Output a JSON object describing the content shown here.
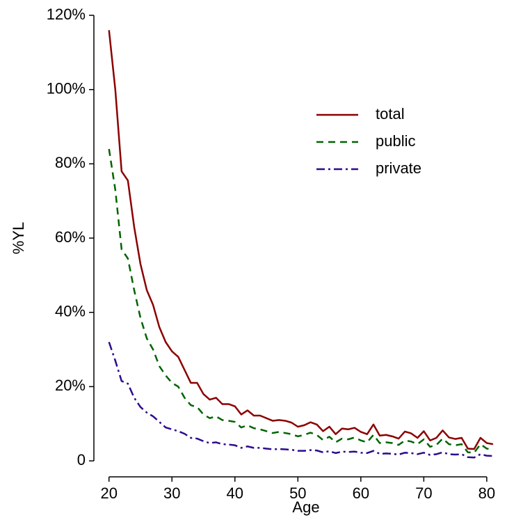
{
  "chart_data": {
    "type": "line",
    "xlabel": "Age",
    "ylabel": "%YL",
    "x": [
      20,
      21,
      22,
      23,
      24,
      25,
      26,
      27,
      28,
      29,
      30,
      31,
      32,
      33,
      34,
      35,
      36,
      37,
      38,
      39,
      40,
      41,
      42,
      43,
      44,
      45,
      46,
      47,
      48,
      49,
      50,
      51,
      52,
      53,
      54,
      55,
      56,
      57,
      58,
      59,
      60,
      61,
      62,
      63,
      64,
      65,
      66,
      67,
      68,
      69,
      70,
      71,
      72,
      73,
      74,
      75,
      76,
      77,
      78,
      79,
      80,
      81
    ],
    "series": [
      {
        "name": "total",
        "color": "#8b0000",
        "linestyle": "solid",
        "values": [
          116,
          100,
          78,
          75.5,
          63,
          53,
          46,
          42,
          36,
          32,
          29.5,
          28,
          24.5,
          21,
          21,
          18,
          16.5,
          17,
          15.3,
          15.3,
          14.7,
          12.5,
          13.6,
          12.2,
          12.2,
          11.5,
          10.8,
          11,
          10.8,
          10.3,
          9.2,
          9.6,
          10.4,
          9.8,
          8,
          9.2,
          7.2,
          8.7,
          8.5,
          8.9,
          7.8,
          7.2,
          9.8,
          6.8,
          7,
          6.6,
          6,
          7.9,
          7.4,
          6.2,
          8,
          5.5,
          6.2,
          8.2,
          6.3,
          5.9,
          6.2,
          3.3,
          3.2,
          6.2,
          4.8,
          4.5
        ]
      },
      {
        "name": "public",
        "color": "#006400",
        "linestyle": "dashed",
        "values": [
          84,
          73,
          57,
          54.5,
          46,
          38.5,
          33,
          30,
          25.5,
          23,
          21,
          20,
          17,
          15,
          14.5,
          12.5,
          11.5,
          12,
          11,
          10.8,
          10.5,
          9,
          9.6,
          8.8,
          8.5,
          8,
          7.5,
          7.8,
          7.5,
          7.2,
          6.6,
          7,
          7.6,
          7,
          5.6,
          6.5,
          5,
          6,
          5.8,
          6.3,
          5.5,
          5,
          7,
          4.8,
          5,
          4.8,
          4.3,
          5.5,
          5.2,
          4.5,
          5.8,
          3.8,
          4.3,
          6,
          4.5,
          4.2,
          4.5,
          2.3,
          2.2,
          4.5,
          3.3,
          3.1
        ]
      },
      {
        "name": "private",
        "color": "#2e0a8c",
        "linestyle": "dashdot",
        "values": [
          32,
          27,
          21.5,
          20.8,
          17,
          14.5,
          13,
          12,
          10.5,
          9,
          8.5,
          8,
          7.3,
          6.2,
          6,
          5.3,
          4.8,
          5,
          4.5,
          4.4,
          4.2,
          3.5,
          3.9,
          3.5,
          3.5,
          3.3,
          3.1,
          3.2,
          3.1,
          3,
          2.7,
          2.7,
          2.9,
          2.8,
          2.3,
          2.6,
          2.1,
          2.5,
          2.4,
          2.5,
          2.2,
          2.1,
          2.7,
          1.9,
          2,
          1.9,
          1.7,
          2.2,
          2.1,
          1.8,
          2.2,
          1.6,
          1.8,
          2.3,
          1.8,
          1.7,
          1.8,
          1,
          0.9,
          1.8,
          1.4,
          1.3
        ]
      }
    ],
    "xlim": [
      17.6,
      82
    ],
    "xticks": [
      20,
      30,
      40,
      50,
      60,
      70,
      80
    ],
    "ylim": [
      -4.3,
      120
    ],
    "yticks": [
      0,
      {
        "value": 20,
        "label": "20%"
      },
      {
        "value": 40,
        "label": "40%"
      },
      {
        "value": 60,
        "label": "60%"
      },
      {
        "value": 80,
        "label": "80%"
      },
      {
        "value": 100,
        "label": "100%"
      },
      {
        "value": 120,
        "label": "120%"
      }
    ],
    "legend": "upper right",
    "grid": false
  }
}
